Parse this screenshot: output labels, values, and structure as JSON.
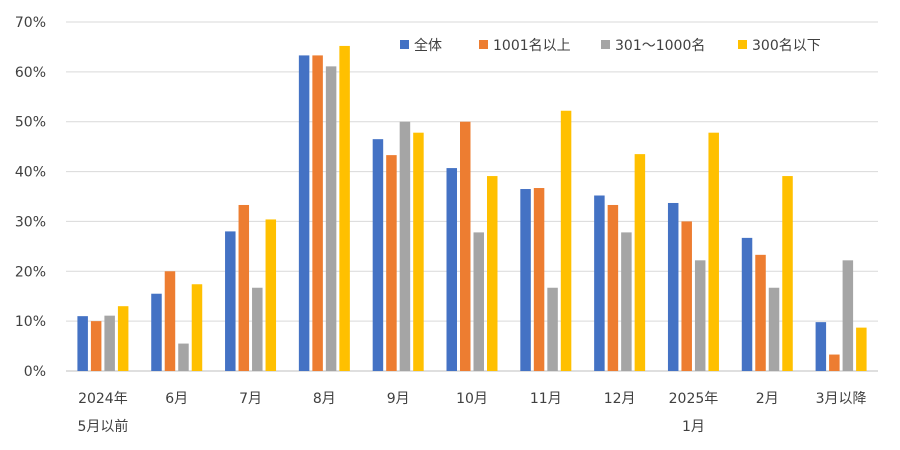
{
  "chart_data": {
    "type": "bar",
    "title": "",
    "xlabel": "",
    "ylabel": "",
    "ylim": [
      0,
      0.7
    ],
    "y_ticks": [
      "0%",
      "10%",
      "20%",
      "30%",
      "40%",
      "50%",
      "60%",
      "70%"
    ],
    "grid": true,
    "legend_position": "top-right",
    "categories": [
      [
        "2024年",
        "5月以前"
      ],
      [
        "6月"
      ],
      [
        "7月"
      ],
      [
        "8月"
      ],
      [
        "9月"
      ],
      [
        "10月"
      ],
      [
        "11月"
      ],
      [
        "12月"
      ],
      [
        "2025年",
        "1月"
      ],
      [
        "2月"
      ],
      [
        "3月以降"
      ]
    ],
    "series": [
      {
        "name": "全体",
        "color": "#4472C4",
        "values": [
          0.11,
          0.155,
          0.28,
          0.633,
          0.465,
          0.407,
          0.365,
          0.352,
          0.337,
          0.267,
          0.098
        ]
      },
      {
        "name": "1001名以上",
        "color": "#ED7D31",
        "values": [
          0.1,
          0.2,
          0.333,
          0.633,
          0.433,
          0.5,
          0.367,
          0.333,
          0.3,
          0.233,
          0.033
        ]
      },
      {
        "name": "301～1000名",
        "color": "#A5A5A5",
        "values": [
          0.111,
          0.055,
          0.167,
          0.611,
          0.5,
          0.278,
          0.167,
          0.278,
          0.222,
          0.167,
          0.222
        ]
      },
      {
        "name": "300名以下",
        "color": "#FFC000",
        "values": [
          0.13,
          0.174,
          0.304,
          0.652,
          0.478,
          0.391,
          0.522,
          0.435,
          0.478,
          0.391,
          0.087
        ]
      }
    ]
  }
}
